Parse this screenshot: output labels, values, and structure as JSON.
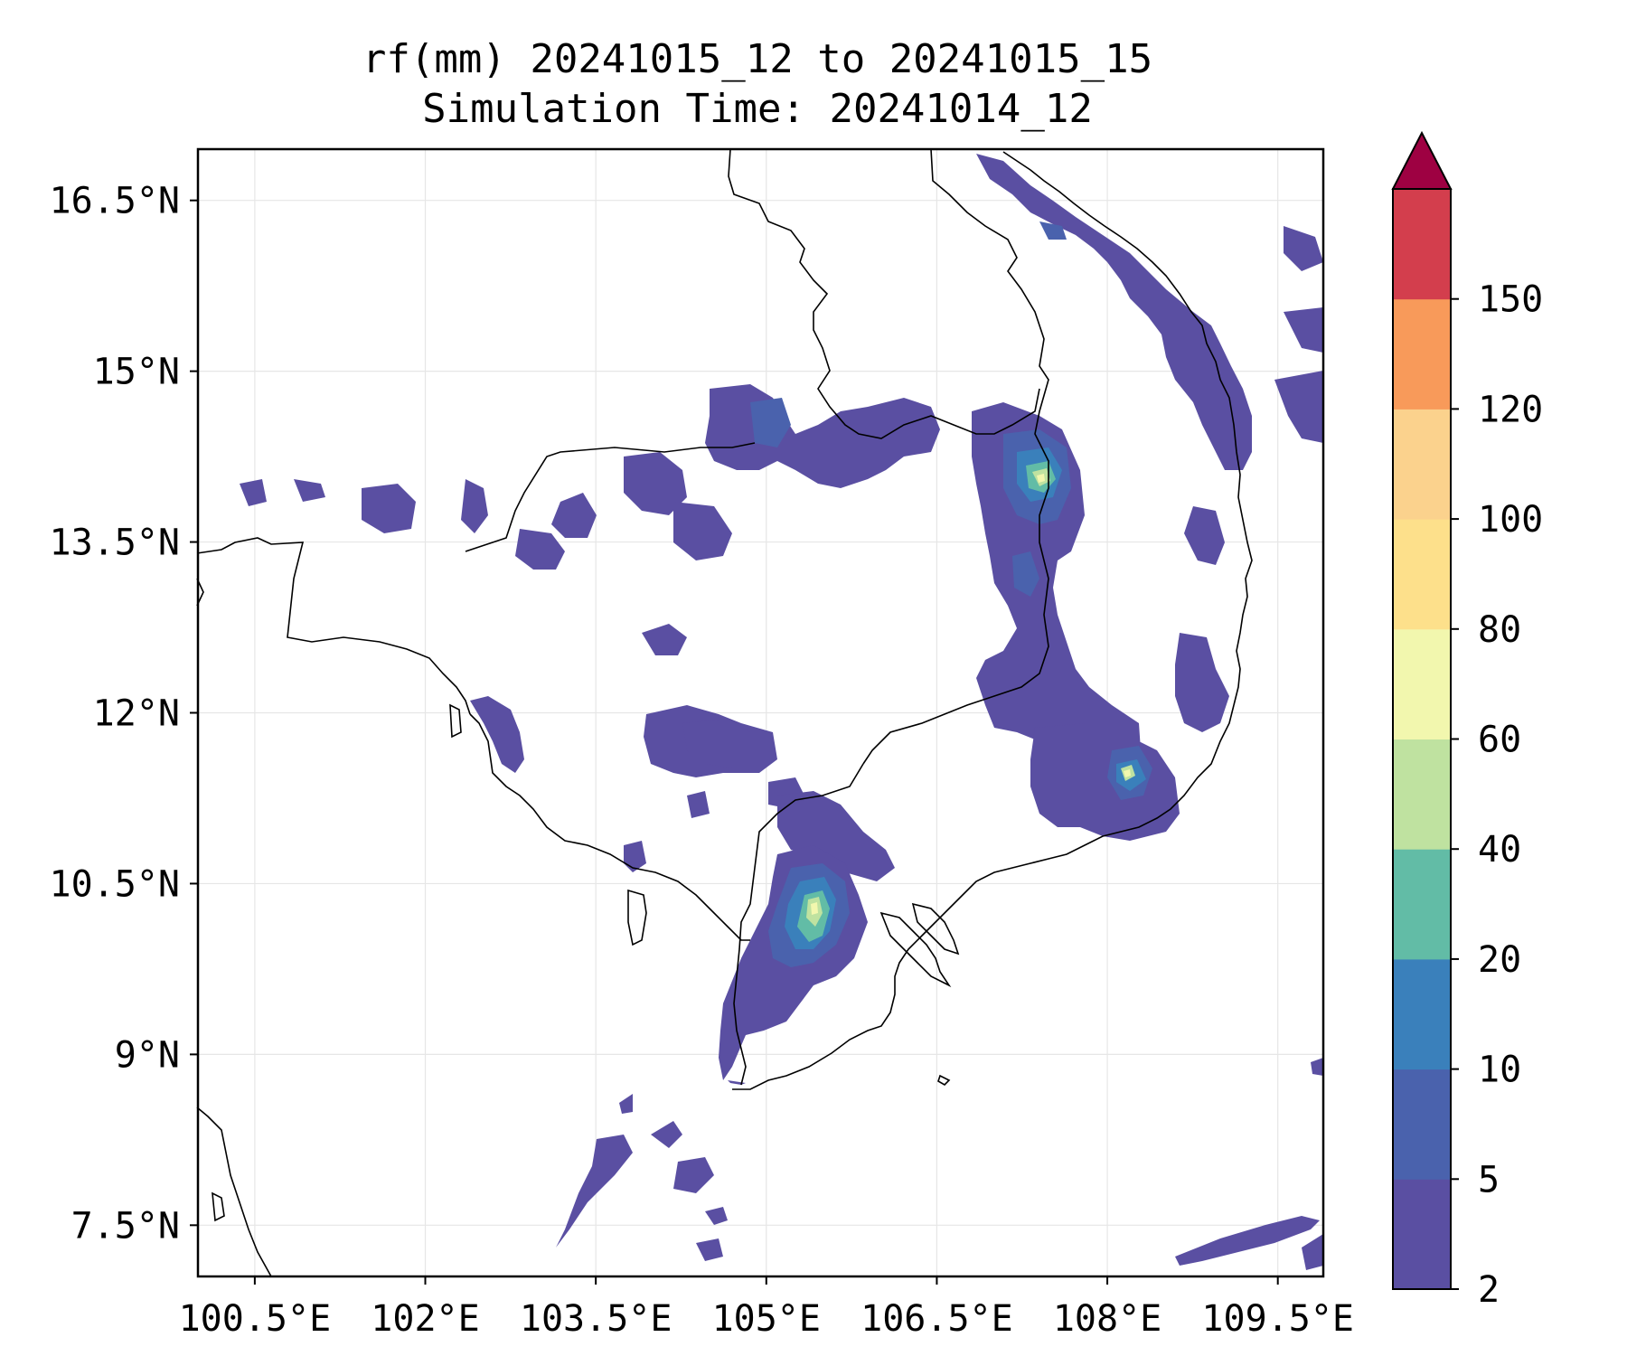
{
  "title": {
    "line1": "rf(mm) 20241015_12 to 20241015_15",
    "line2": "Simulation Time: 20241014_12"
  },
  "map": {
    "lon_range": [
      100.0,
      109.9
    ],
    "lat_range": [
      7.05,
      16.95
    ],
    "lon_ticks": [
      {
        "value": 100.5,
        "label": "100.5°E"
      },
      {
        "value": 102.0,
        "label": "102°E"
      },
      {
        "value": 103.5,
        "label": "103.5°E"
      },
      {
        "value": 105.0,
        "label": "105°E"
      },
      {
        "value": 106.5,
        "label": "106.5°E"
      },
      {
        "value": 108.0,
        "label": "108°E"
      },
      {
        "value": 109.5,
        "label": "109.5°E"
      }
    ],
    "lat_ticks": [
      {
        "value": 16.5,
        "label": "16.5°N"
      },
      {
        "value": 15.0,
        "label": "15°N"
      },
      {
        "value": 13.5,
        "label": "13.5°N"
      },
      {
        "value": 12.0,
        "label": "12°N"
      },
      {
        "value": 10.5,
        "label": "10.5°N"
      },
      {
        "value": 9.0,
        "label": "9°N"
      },
      {
        "value": 7.5,
        "label": "7.5°N"
      }
    ],
    "grid": true
  },
  "colorbar": {
    "levels": [
      "2",
      "5",
      "10",
      "20",
      "40",
      "60",
      "80",
      "100",
      "120",
      "150"
    ],
    "colors": [
      "#5a4fa2",
      "#4a62ad",
      "#3a80bb",
      "#62bca6",
      "#bfe2a0",
      "#f2f7ae",
      "#fde08b",
      "#fbd28d",
      "#f89a5a",
      "#d33e4d"
    ],
    "extend_color": "#9e0142"
  },
  "rain_colors": {
    "level1": "#5a4fa2",
    "level2": "#4a62ad",
    "level3": "#3a80bb",
    "level4": "#62bca6",
    "level5": "#bfe2a0",
    "level6": "#f2f7ae"
  }
}
